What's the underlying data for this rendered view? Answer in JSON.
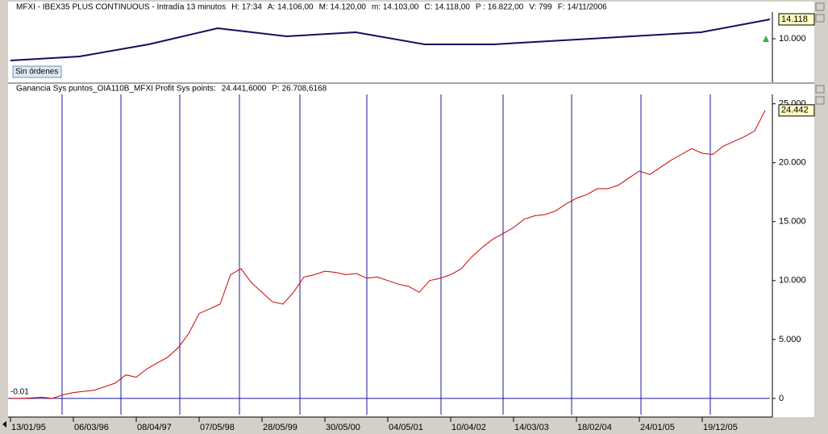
{
  "chart_data": [
    {
      "type": "line",
      "header_items": [
        {
          "text": "MFXI - IBEX35 PLUS CONTINUOUS - Intradía 13 minutos",
          "color": "#000000"
        },
        {
          "text": "H: 17:34",
          "color": "#000000"
        },
        {
          "text": "A: 14.106,00",
          "color": "#000000"
        },
        {
          "text": "M: 14.120,00",
          "color": "#000000"
        },
        {
          "text": "m: 14.103,00",
          "color": "#000000"
        },
        {
          "text": "C: 14.118,00",
          "color": "#000000"
        },
        {
          "text": "P : 16.822,00",
          "color": "#e00000"
        },
        {
          "text": "V: 799",
          "color": "#000000"
        },
        {
          "text": "F: 14/11/2006",
          "color": "#000000"
        }
      ],
      "status": "Sin órdenes",
      "xlim": [
        0,
        11
      ],
      "ylim": [
        1080,
        15660
      ],
      "yticks": [
        {
          "value": 10000,
          "label": "10.000"
        }
      ],
      "series": [
        {
          "color": "#101060",
          "values": [
            5370,
            6225,
            8800,
            12230,
            10515,
            11370,
            8800,
            8800,
            9660,
            10515,
            11370,
            14118
          ],
          "value_labels": [
            null,
            null,
            null,
            null,
            null,
            null,
            null,
            null,
            null,
            null,
            null,
            "14.118"
          ]
        }
      ]
    },
    {
      "type": "line",
      "header_items": [
        {
          "text": "Ganancia Sys puntos_OIA110B_MFXI  Profit Sys points:",
          "color": "#d00000"
        },
        {
          "text": "24.441,6000",
          "color": "#0000c0"
        },
        {
          "text": "P: 26.708,6168",
          "color": "#d00000"
        }
      ],
      "xlim": [
        0,
        72
      ],
      "xticks": [
        {
          "value": 0,
          "label": "13/01/95"
        },
        {
          "value": 6,
          "label": "06/03/96"
        },
        {
          "value": 12,
          "label": "08/04/97"
        },
        {
          "value": 18,
          "label": "07/05/98"
        },
        {
          "value": 24,
          "label": "28/05/99"
        },
        {
          "value": 30,
          "label": "30/05/00"
        },
        {
          "value": 36,
          "label": "04/05/01"
        },
        {
          "value": 42,
          "label": "10/04/02"
        },
        {
          "value": 48,
          "label": "14/03/03"
        },
        {
          "value": 54,
          "label": "18/02/04"
        },
        {
          "value": 60,
          "label": "24/01/05"
        },
        {
          "value": 66,
          "label": "19/12/05"
        }
      ],
      "ylim": [
        -1240,
        25800
      ],
      "yticks": [
        0,
        {
          "value": 5000,
          "label": "5.000"
        },
        {
          "value": 10000,
          "label": "10.000"
        },
        {
          "value": 15000,
          "label": "15.000"
        },
        {
          "value": 20000,
          "label": "20.000"
        },
        {
          "value": 25000,
          "label": "25.000"
        }
      ],
      "series": [
        {
          "color": "#cc0000",
          "values": [
            -0.01,
            0,
            50,
            100,
            0,
            300,
            500,
            600,
            700,
            1000,
            1300,
            2000,
            1800,
            2500,
            3000,
            3500,
            4300,
            5500,
            7200,
            7600,
            8000,
            10500,
            11000,
            9800,
            9000,
            8200,
            8000,
            9000,
            10300,
            10500,
            10800,
            10700,
            10500,
            10600,
            10200,
            10300,
            10000,
            9700,
            9500,
            9000,
            10000,
            10200,
            10500,
            11000,
            12000,
            12800,
            13500,
            14000,
            14500,
            15200,
            15500,
            15600,
            15900,
            16500,
            17000,
            17300,
            17800,
            17800,
            18100,
            18700,
            19300,
            19000,
            19600,
            20200,
            20700,
            21200,
            20800,
            20700,
            21400,
            21800,
            22200,
            22700,
            24442
          ],
          "value_labels": [
            "-0.01",
            null,
            null,
            null,
            null,
            null,
            null,
            null,
            null,
            null,
            null,
            null,
            null,
            null,
            null,
            null,
            null,
            null,
            null,
            null,
            null,
            null,
            null,
            null,
            null,
            null,
            null,
            null,
            null,
            null,
            null,
            null,
            null,
            null,
            null,
            null,
            null,
            null,
            null,
            null,
            null,
            null,
            null,
            null,
            null,
            null,
            null,
            null,
            null,
            null,
            null,
            null,
            null,
            null,
            null,
            null,
            null,
            null,
            null,
            null,
            null,
            null,
            null,
            null,
            null,
            null,
            null,
            null,
            null,
            null,
            null,
            null,
            "24.442"
          ]
        }
      ]
    }
  ]
}
